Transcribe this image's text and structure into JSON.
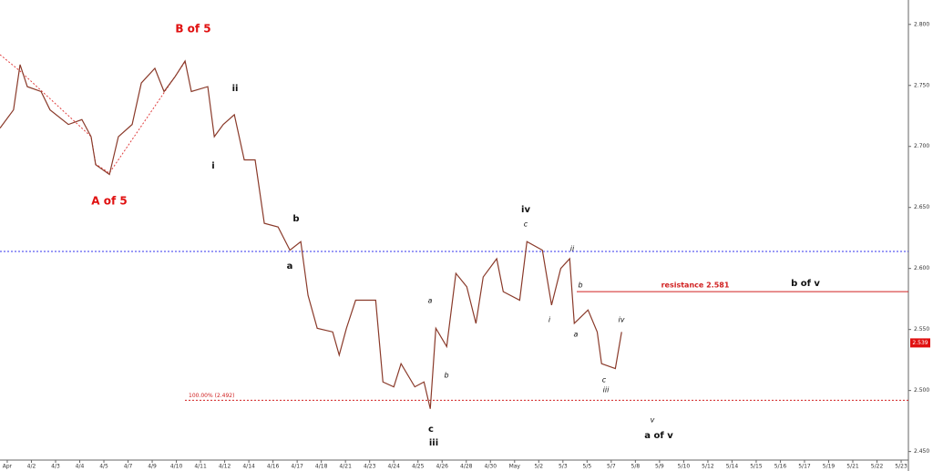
{
  "chart_data": {
    "type": "line",
    "xlim": [
      -0.3,
      37.3
    ],
    "xticks": [
      {
        "value": 0,
        "label": "Apr"
      },
      {
        "value": 1,
        "label": "4/2"
      },
      {
        "value": 2,
        "label": "4/3"
      },
      {
        "value": 3,
        "label": "4/4"
      },
      {
        "value": 4,
        "label": "4/5"
      },
      {
        "value": 5,
        "label": "4/7"
      },
      {
        "value": 6,
        "label": "4/9"
      },
      {
        "value": 7,
        "label": "4/10"
      },
      {
        "value": 8,
        "label": "4/11"
      },
      {
        "value": 9,
        "label": "4/12"
      },
      {
        "value": 10,
        "label": "4/14"
      },
      {
        "value": 11,
        "label": "4/16"
      },
      {
        "value": 12,
        "label": "4/17"
      },
      {
        "value": 13,
        "label": "4/18"
      },
      {
        "value": 14,
        "label": "4/21"
      },
      {
        "value": 15,
        "label": "4/23"
      },
      {
        "value": 16,
        "label": "4/24"
      },
      {
        "value": 17,
        "label": "4/25"
      },
      {
        "value": 18,
        "label": "4/26"
      },
      {
        "value": 19,
        "label": "4/28"
      },
      {
        "value": 20,
        "label": "4/30"
      },
      {
        "value": 21,
        "label": "May"
      },
      {
        "value": 22,
        "label": "5/2"
      },
      {
        "value": 23,
        "label": "5/3"
      },
      {
        "value": 24,
        "label": "5/5"
      },
      {
        "value": 25,
        "label": "5/7"
      },
      {
        "value": 26,
        "label": "5/8"
      },
      {
        "value": 27,
        "label": "5/9"
      },
      {
        "value": 28,
        "label": "5/10"
      },
      {
        "value": 29,
        "label": "5/12"
      },
      {
        "value": 30,
        "label": "5/14"
      },
      {
        "value": 31,
        "label": "5/15"
      },
      {
        "value": 32,
        "label": "5/16"
      },
      {
        "value": 33,
        "label": "5/17"
      },
      {
        "value": 34,
        "label": "5/19"
      },
      {
        "value": 35,
        "label": "5/21"
      },
      {
        "value": 36,
        "label": "5/22"
      },
      {
        "value": 37,
        "label": "5/23"
      }
    ],
    "ylim": [
      2.443,
      2.82
    ],
    "yticks": [
      {
        "value": 2.45,
        "label": "2.450"
      },
      {
        "value": 2.5,
        "label": "2.500"
      },
      {
        "value": 2.55,
        "label": "2.550"
      },
      {
        "value": 2.6,
        "label": "2.600"
      },
      {
        "value": 2.65,
        "label": "2.650"
      },
      {
        "value": 2.7,
        "label": "2.700"
      },
      {
        "value": 2.75,
        "label": "2.750"
      },
      {
        "value": 2.8,
        "label": "2.800"
      }
    ],
    "series": [
      {
        "color": "#8a3a2a",
        "x": [
          -0.3,
          0.26,
          0.53,
          0.83,
          1.4,
          1.77,
          2.53,
          3.09,
          3.47,
          3.66,
          4.23,
          4.6,
          5.17,
          5.55,
          6.11,
          6.49,
          6.94,
          7.36,
          7.62,
          8.3,
          8.57,
          8.94,
          9.4,
          9.81,
          10.26,
          10.64,
          11.21,
          11.7,
          12.15,
          12.45,
          12.83,
          13.47,
          13.74,
          14.04,
          14.42,
          15.25,
          15.55,
          16.0,
          16.3,
          16.87,
          17.25,
          17.51,
          17.74,
          18.19,
          18.57,
          19.02,
          19.4,
          19.7,
          20.26,
          20.53,
          21.21,
          21.51,
          22.15,
          22.53,
          22.91,
          23.28,
          23.47,
          24.04,
          24.42,
          24.6,
          25.17,
          25.43
        ],
        "values": [
          2.715,
          2.73,
          2.767,
          2.749,
          2.745,
          2.73,
          2.718,
          2.722,
          2.708,
          2.685,
          2.677,
          2.708,
          2.718,
          2.752,
          2.764,
          2.745,
          2.757,
          2.77,
          2.745,
          2.749,
          2.708,
          2.718,
          2.726,
          2.689,
          2.689,
          2.637,
          2.634,
          2.615,
          2.622,
          2.578,
          2.551,
          2.548,
          2.529,
          2.551,
          2.574,
          2.574,
          2.507,
          2.503,
          2.522,
          2.503,
          2.507,
          2.485,
          2.551,
          2.536,
          2.596,
          2.585,
          2.555,
          2.593,
          2.608,
          2.581,
          2.574,
          2.622,
          2.615,
          2.57,
          2.6,
          2.608,
          2.555,
          2.566,
          2.548,
          2.522,
          2.518,
          2.548
        ]
      }
    ],
    "levels": [
      {
        "value": 2.614,
        "color": "#3333ee"
      },
      {
        "value": 2.581,
        "color": "#d02020",
        "label": "resistance 2.581"
      },
      {
        "value": 2.492,
        "color": "#d02020",
        "label": "100.00% (2.492)"
      }
    ],
    "last_price": 2.539,
    "annotations": [
      "B of 5",
      "A of 5",
      "ii",
      "i",
      "b",
      "a",
      "c",
      "iii",
      "iv",
      "b of v",
      "v",
      "a of v"
    ],
    "minor_annotations": [
      "a",
      "b",
      "c",
      "ii",
      "i",
      "b",
      "a",
      "iv",
      "c",
      "iii"
    ]
  }
}
